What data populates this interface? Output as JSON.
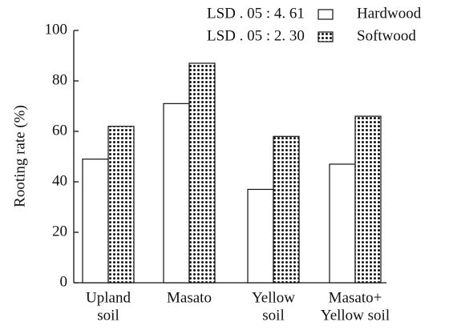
{
  "chart_data": {
    "type": "bar",
    "y_label": "Rooting rate (%)",
    "categories": [
      [
        "Upland",
        "soil"
      ],
      [
        "Masato"
      ],
      [
        "Yellow",
        "soil"
      ],
      [
        "Masato+",
        "Yellow soil"
      ]
    ],
    "series": [
      {
        "name": "Hardwood",
        "color": "#ffffff",
        "values": [
          49,
          71,
          37,
          47
        ]
      },
      {
        "name": "Softwood",
        "color": "#ffffff",
        "pattern": "dots",
        "values": [
          62,
          87,
          58,
          66
        ]
      }
    ],
    "annotations": [
      "LSD . 05 : 4. 61",
      "LSD . 05 : 2. 30"
    ],
    "ylim": [
      0,
      100
    ],
    "yticks": [
      0,
      20,
      40,
      60,
      80,
      100
    ],
    "grid": false
  }
}
